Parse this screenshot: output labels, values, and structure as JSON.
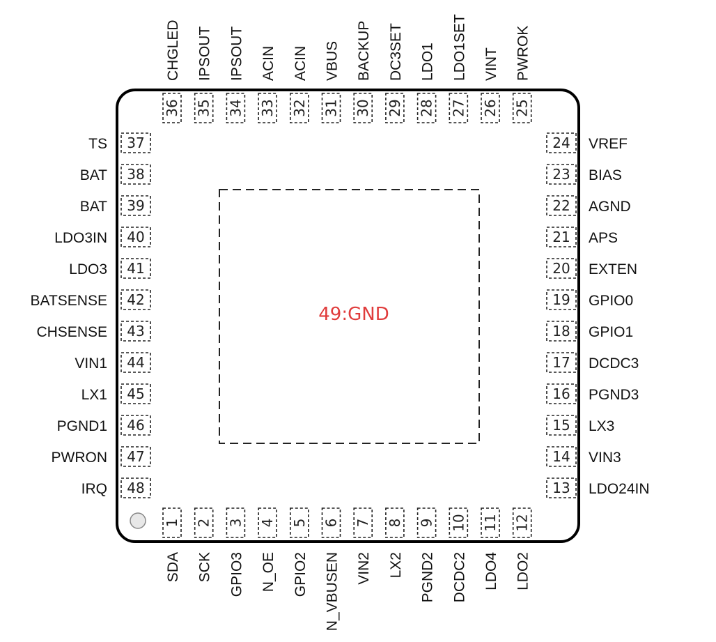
{
  "chip": {
    "exposed_pad_label": "49:GND",
    "exposed_pad_color": "#e03c3c",
    "pin1_marker": "pin1-dot"
  },
  "pins": {
    "left": [
      {
        "num": "37",
        "name": "TS"
      },
      {
        "num": "38",
        "name": "BAT"
      },
      {
        "num": "39",
        "name": "BAT"
      },
      {
        "num": "40",
        "name": "LDO3IN"
      },
      {
        "num": "41",
        "name": "LDO3"
      },
      {
        "num": "42",
        "name": "BATSENSE"
      },
      {
        "num": "43",
        "name": "CHSENSE"
      },
      {
        "num": "44",
        "name": "VIN1"
      },
      {
        "num": "45",
        "name": "LX1"
      },
      {
        "num": "46",
        "name": "PGND1"
      },
      {
        "num": "47",
        "name": "PWRON"
      },
      {
        "num": "48",
        "name": "IRQ"
      }
    ],
    "right": [
      {
        "num": "24",
        "name": "VREF"
      },
      {
        "num": "23",
        "name": "BIAS"
      },
      {
        "num": "22",
        "name": "AGND"
      },
      {
        "num": "21",
        "name": "APS"
      },
      {
        "num": "20",
        "name": "EXTEN"
      },
      {
        "num": "19",
        "name": "GPIO0"
      },
      {
        "num": "18",
        "name": "GPIO1"
      },
      {
        "num": "17",
        "name": "DCDC3"
      },
      {
        "num": "16",
        "name": "PGND3"
      },
      {
        "num": "15",
        "name": "LX3"
      },
      {
        "num": "14",
        "name": "VIN3"
      },
      {
        "num": "13",
        "name": "LDO24IN"
      }
    ],
    "top": [
      {
        "num": "36",
        "name": "CHGLED"
      },
      {
        "num": "35",
        "name": "IPSOUT"
      },
      {
        "num": "34",
        "name": "IPSOUT"
      },
      {
        "num": "33",
        "name": "ACIN"
      },
      {
        "num": "32",
        "name": "ACIN"
      },
      {
        "num": "31",
        "name": "VBUS"
      },
      {
        "num": "30",
        "name": "BACKUP"
      },
      {
        "num": "29",
        "name": "DC3SET"
      },
      {
        "num": "28",
        "name": "LDO1"
      },
      {
        "num": "27",
        "name": "LDO1SET"
      },
      {
        "num": "26",
        "name": "VINT"
      },
      {
        "num": "25",
        "name": "PWROK"
      }
    ],
    "bottom": [
      {
        "num": "1",
        "name": "SDA"
      },
      {
        "num": "2",
        "name": "SCK"
      },
      {
        "num": "3",
        "name": "GPIO3"
      },
      {
        "num": "4",
        "name": "N_OE"
      },
      {
        "num": "5",
        "name": "GPIO2"
      },
      {
        "num": "6",
        "name": "N_VBUSEN"
      },
      {
        "num": "7",
        "name": "VIN2"
      },
      {
        "num": "8",
        "name": "LX2"
      },
      {
        "num": "9",
        "name": "PGND2"
      },
      {
        "num": "10",
        "name": "DCDC2"
      },
      {
        "num": "11",
        "name": "LDO4"
      },
      {
        "num": "12",
        "name": "LDO2"
      }
    ]
  }
}
